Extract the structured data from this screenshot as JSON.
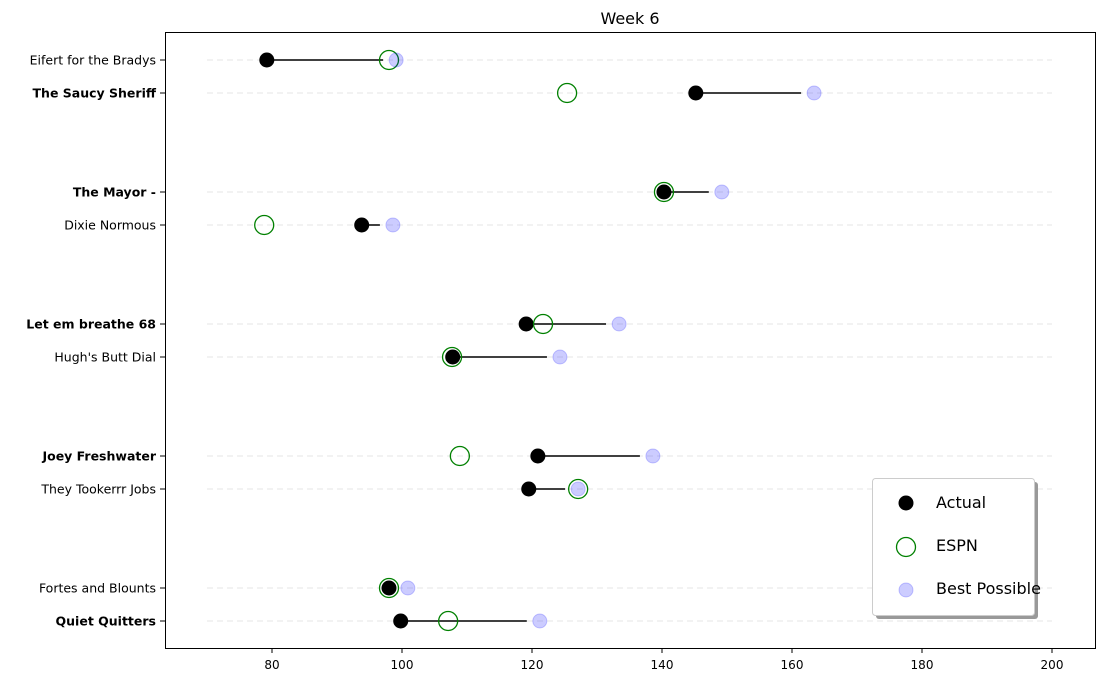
{
  "chart_data": {
    "type": "scatter",
    "title": "Week 6",
    "xlabel": "",
    "ylabel": "",
    "xlim": [
      63,
      207
    ],
    "xticks": [
      80,
      100,
      120,
      140,
      160,
      180,
      200
    ],
    "guide_range": [
      70,
      200
    ],
    "grid": "horizontal dashed",
    "legend_placement": "lower-right",
    "legend": [
      "Actual",
      "ESPN",
      "Best Possible"
    ],
    "colors": {
      "actual": "#000000",
      "espn": "#008000",
      "best": "#0000ff",
      "guide": "#e6e6e6"
    },
    "teams": [
      {
        "name": "Eifert  for the Bradys",
        "bold": false,
        "actual": 79.2,
        "espn": 98.0,
        "best": 99.1,
        "line_to": 97.1
      },
      {
        "name": "The Saucy Sheriff",
        "bold": true,
        "actual": 145.2,
        "espn": 125.4,
        "best": 163.4,
        "line_to": 161.4
      },
      {
        "name": "The Mayor -",
        "bold": true,
        "actual": 140.3,
        "espn": 140.3,
        "best": 149.2,
        "line_to": 147.2
      },
      {
        "name": "Dixie Normous",
        "bold": false,
        "actual": 93.8,
        "espn": 78.8,
        "best": 98.6,
        "line_to": 96.6
      },
      {
        "name": "Let em breathe 68",
        "bold": true,
        "actual": 119.1,
        "espn": 121.7,
        "best": 133.4,
        "line_to": 131.4
      },
      {
        "name": "Hugh's  Butt Dial",
        "bold": false,
        "actual": 107.8,
        "espn": 107.7,
        "best": 124.3,
        "line_to": 122.3
      },
      {
        "name": "Joey Freshwater",
        "bold": true,
        "actual": 120.9,
        "espn": 108.9,
        "best": 138.6,
        "line_to": 136.6
      },
      {
        "name": "They Tookerrr Jobs",
        "bold": false,
        "actual": 119.5,
        "espn": 127.1,
        "best": 127.1,
        "line_to": 125.1
      },
      {
        "name": "Fortes and Blounts",
        "bold": false,
        "actual": 98.0,
        "espn": 98.0,
        "best": 100.9,
        "line_to": 98.9
      },
      {
        "name": "Quiet Quitters",
        "bold": true,
        "actual": 99.8,
        "espn": 107.1,
        "best": 121.2,
        "line_to": 119.2
      }
    ]
  }
}
